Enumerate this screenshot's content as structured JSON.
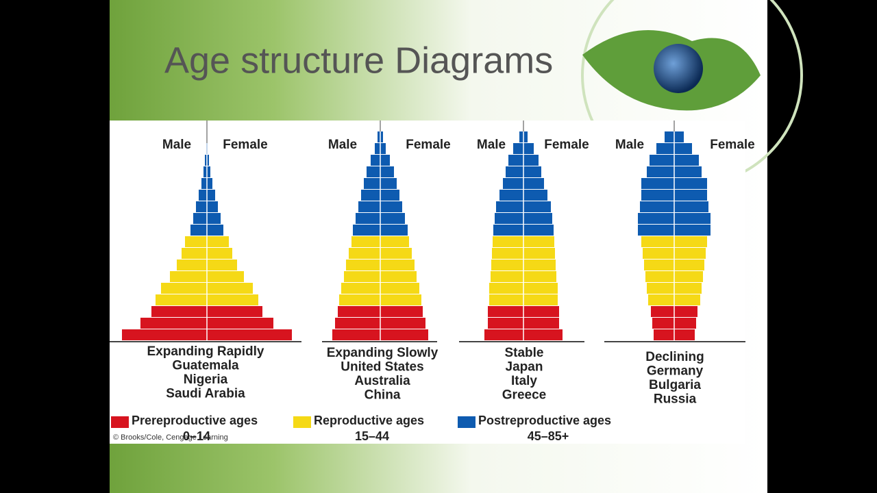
{
  "title": "Age structure Diagrams",
  "credit": "© Brooks/Cole, Cengage Learning",
  "legend": [
    {
      "name": "Prereproductive ages",
      "range": "0–14",
      "color": "#d7141f"
    },
    {
      "name": "Reproductive ages",
      "range": "15–44",
      "color": "#f5d916"
    },
    {
      "name": "Postreproductive ages",
      "range": "45–85+",
      "color": "#0e5bb0"
    }
  ],
  "chart_data": [
    {
      "type": "pyramid",
      "left_label": "Male",
      "right_label": "Female",
      "title": "Expanding Rapidly",
      "countries": [
        "Guatemala",
        "Nigeria",
        "Saudi Arabia"
      ],
      "groups": [
        [
          124,
          97,
          81
        ],
        [
          75,
          67,
          54,
          44,
          37,
          32
        ],
        [
          24,
          20,
          16,
          12,
          8,
          5,
          3,
          1
        ]
      ]
    },
    {
      "type": "pyramid",
      "left_label": "Male",
      "right_label": "Female",
      "title": "Expanding Slowly",
      "countries": [
        "United States",
        "Australia",
        "China"
      ],
      "groups": [
        [
          70,
          66,
          62
        ],
        [
          60,
          57,
          53,
          50,
          46,
          42
        ],
        [
          40,
          36,
          32,
          28,
          24,
          20,
          14,
          8,
          4
        ]
      ]
    },
    {
      "type": "pyramid",
      "left_label": "Male",
      "right_label": "Female",
      "title": "Stable",
      "countries": [
        "Japan",
        "Italy",
        "Greece"
      ],
      "groups": [
        [
          57,
          52,
          52
        ],
        [
          50,
          50,
          48,
          47,
          46,
          45
        ],
        [
          44,
          42,
          40,
          35,
          30,
          26,
          22,
          15,
          6
        ]
      ]
    },
    {
      "type": "pyramid",
      "left_label": "Male",
      "right_label": "Female",
      "title": "Declining",
      "countries": [
        "Germany",
        "Bulgaria",
        "Russia"
      ],
      "groups": [
        [
          30,
          32,
          34
        ],
        [
          38,
          40,
          42,
          44,
          46,
          48
        ],
        [
          53,
          53,
          50,
          48,
          48,
          40,
          36,
          26,
          14
        ]
      ]
    }
  ]
}
